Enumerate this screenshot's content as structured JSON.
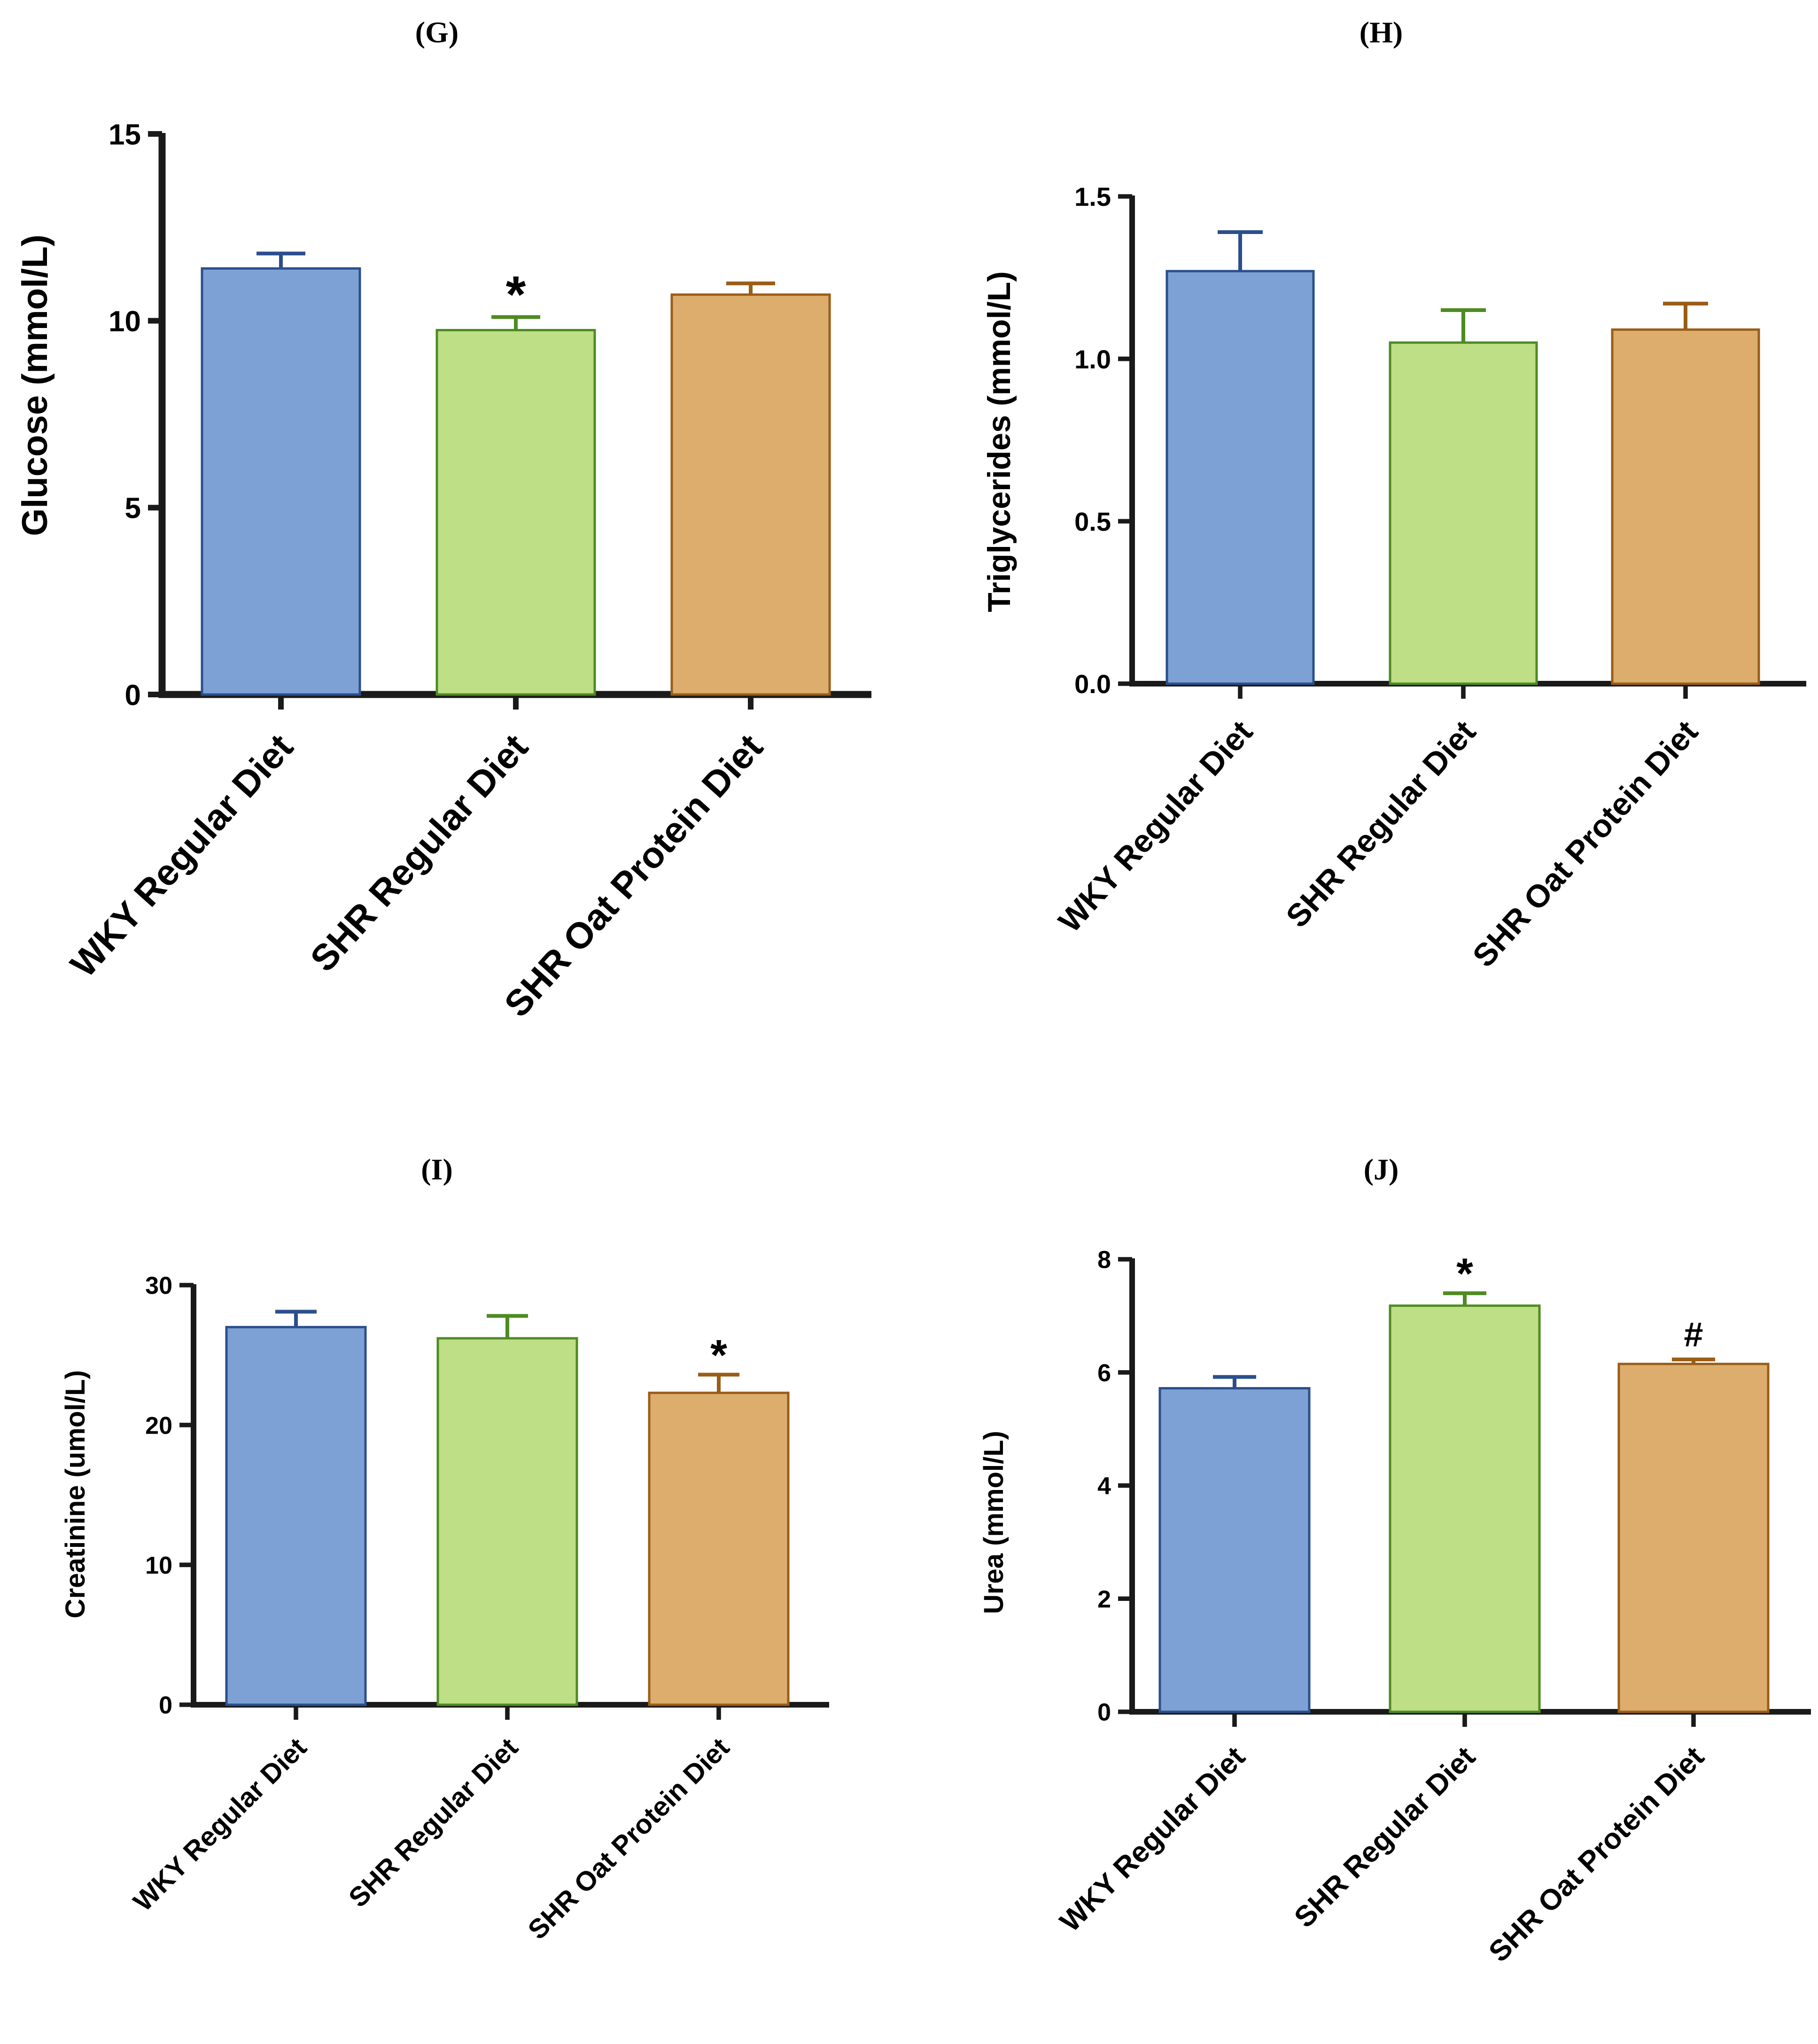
{
  "colors": {
    "wky_fill": "#7da1d4",
    "wky_stroke": "#2b4f8c",
    "shr_fill": "#bedf86",
    "shr_stroke": "#4e8b22",
    "oat_fill": "#dcad6d",
    "oat_stroke": "#9a5d17",
    "axis": "#1a1a1a"
  },
  "chart_data": [
    {
      "type": "bar",
      "panel": "(G)",
      "ylabel": "Glucose (mmol/L)",
      "ylim": [
        0,
        15
      ],
      "yticks": [
        0,
        5,
        10,
        15
      ],
      "ytick_labels": [
        "0",
        "5",
        "10",
        "15"
      ],
      "categories": [
        "WKY Regular Diet",
        "SHR Regular Diet",
        "SHR Oat Protein Diet"
      ],
      "values": [
        11.4,
        9.75,
        10.7
      ],
      "errors": [
        0.4,
        0.35,
        0.3
      ],
      "annotations": [
        "",
        "*",
        ""
      ]
    },
    {
      "type": "bar",
      "panel": "(H)",
      "ylabel": "Triglycerides (mmol/L)",
      "ylim": [
        0,
        1.5
      ],
      "yticks": [
        0,
        0.5,
        1.0,
        1.5
      ],
      "ytick_labels": [
        "0.0",
        "0.5",
        "1.0",
        "1.5"
      ],
      "categories": [
        "WKY Regular Diet",
        "SHR Regular Diet",
        "SHR Oat Protein Diet"
      ],
      "values": [
        1.27,
        1.05,
        1.09
      ],
      "errors": [
        0.12,
        0.1,
        0.08
      ],
      "annotations": [
        "",
        "",
        ""
      ]
    },
    {
      "type": "bar",
      "panel": "(I)",
      "ylabel": "Creatinine (umol/L)",
      "ylim": [
        0,
        30
      ],
      "yticks": [
        0,
        10,
        20,
        30
      ],
      "ytick_labels": [
        "0",
        "10",
        "20",
        "30"
      ],
      "categories": [
        "WKY Regular Diet",
        "SHR Regular  Diet",
        "SHR Oat Protein Diet"
      ],
      "values": [
        27.0,
        26.2,
        22.3
      ],
      "errors": [
        1.1,
        1.6,
        1.3
      ],
      "annotations": [
        "",
        "",
        "*"
      ]
    },
    {
      "type": "bar",
      "panel": "(J)",
      "ylabel": "Urea (mmol/L)",
      "ylim": [
        0,
        8
      ],
      "yticks": [
        0,
        2,
        4,
        6,
        8
      ],
      "ytick_labels": [
        "0",
        "2",
        "4",
        "6",
        "8"
      ],
      "categories": [
        "WKY Regular Diet",
        "SHR Regular Diet",
        "SHR Oat Protein Diet"
      ],
      "values": [
        5.72,
        7.18,
        6.15
      ],
      "errors": [
        0.2,
        0.22,
        0.08
      ],
      "annotations": [
        "",
        "*",
        "#"
      ]
    }
  ]
}
